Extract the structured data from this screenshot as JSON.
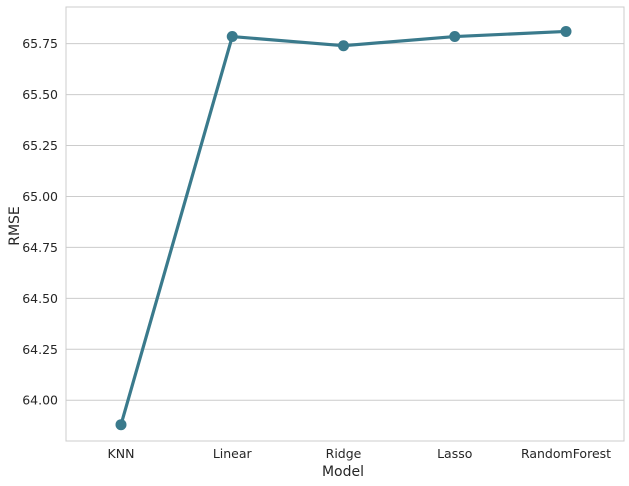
{
  "chart_data": {
    "type": "line",
    "title": "",
    "xlabel": "Model",
    "ylabel": "RMSE",
    "categories": [
      "KNN",
      "Linear",
      "Ridge",
      "Lasso",
      "RandomForest"
    ],
    "series": [
      {
        "values": [
          63.88,
          65.785,
          65.74,
          65.785,
          65.81
        ],
        "color": "#3a7a8c",
        "marker": "circle"
      }
    ],
    "ylim": [
      63.8,
      65.93
    ],
    "yticks": [
      "64.00",
      "64.25",
      "64.50",
      "64.75",
      "65.00",
      "65.25",
      "65.50",
      "65.75"
    ],
    "grid": "horizontal",
    "legend": "none",
    "style": "whitegrid"
  }
}
